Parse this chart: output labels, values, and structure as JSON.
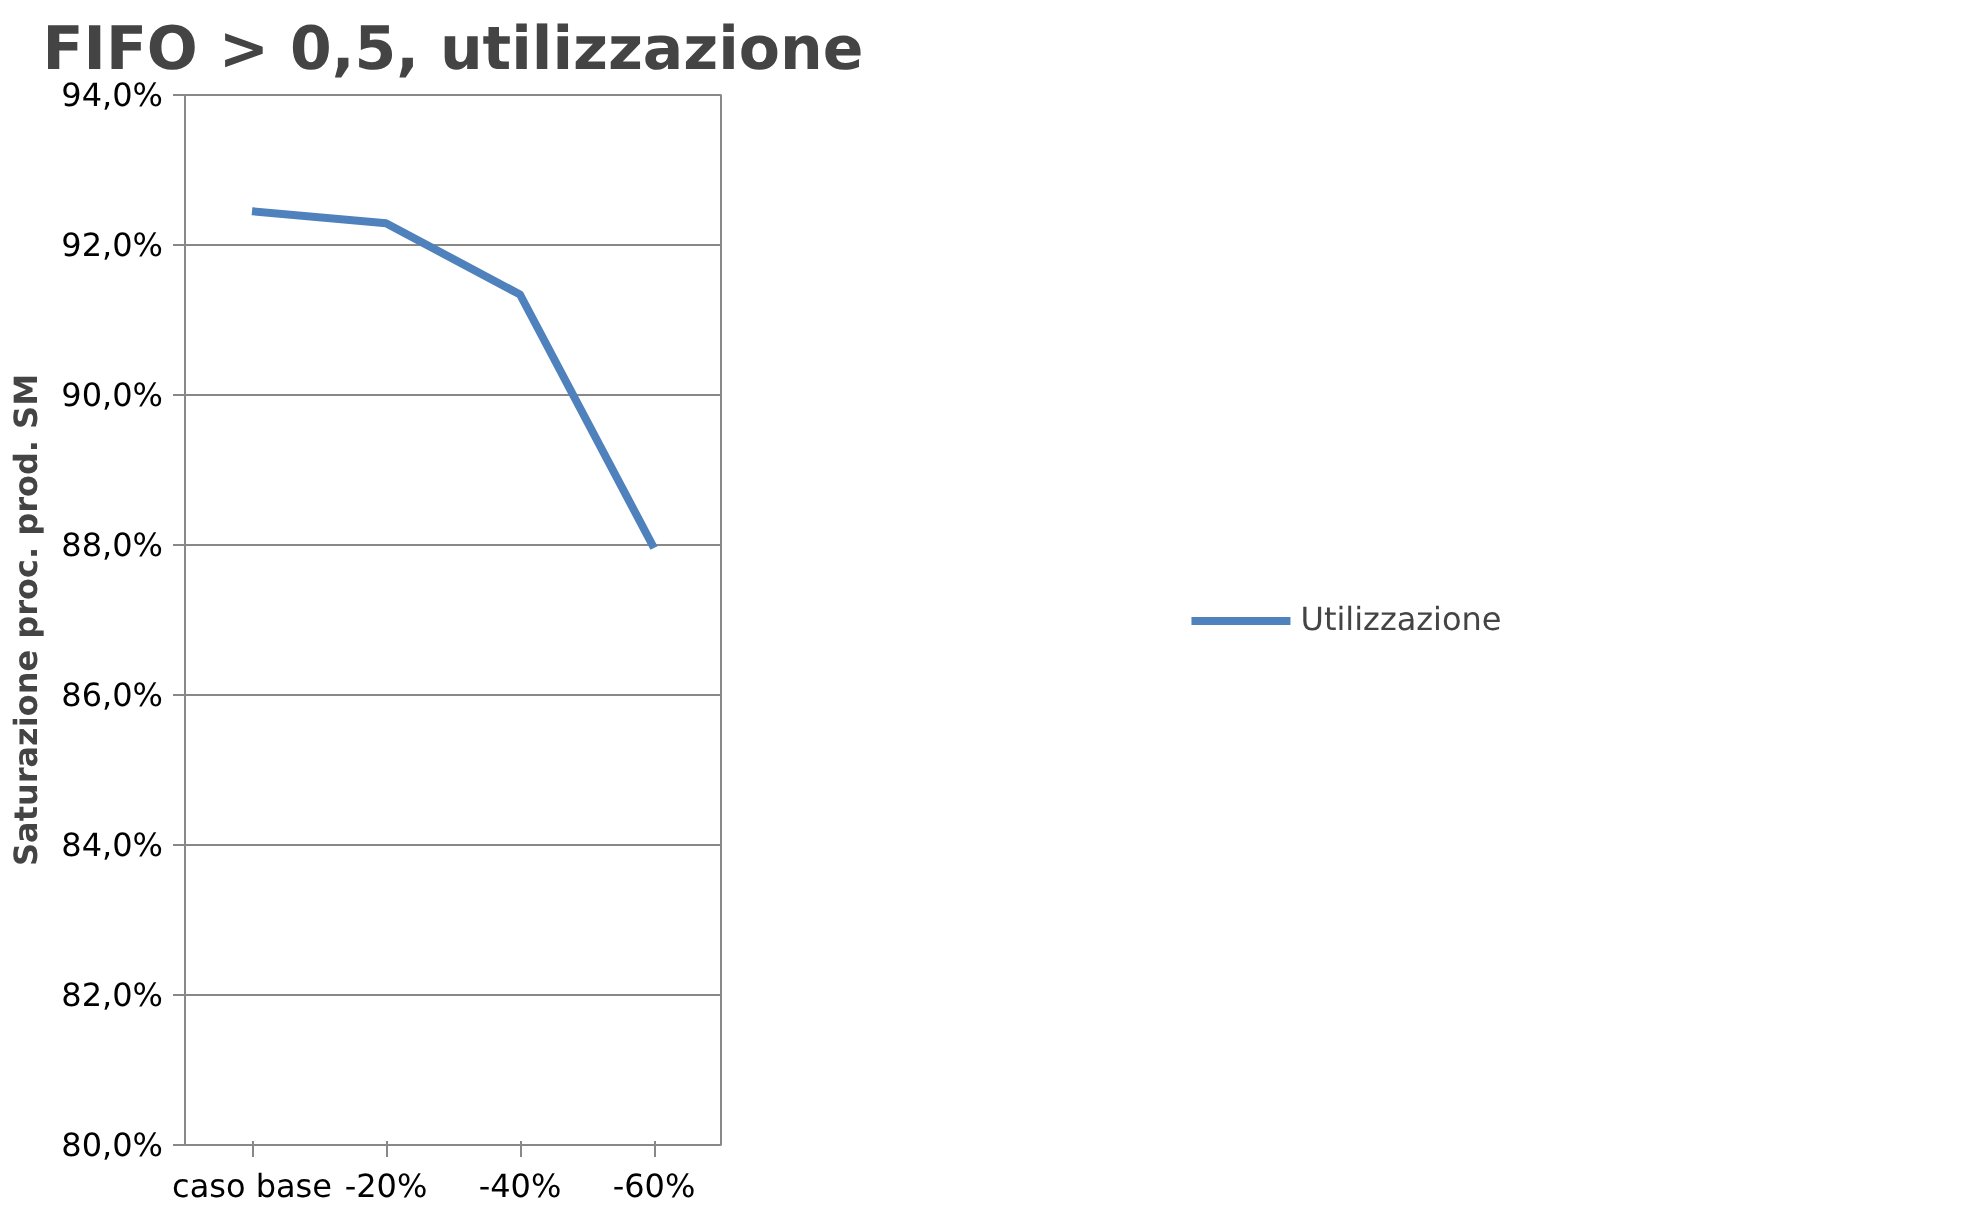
{
  "chart_data": {
    "type": "line",
    "title": "FIFO > 0,5, utilizzazione",
    "ylabel": "Saturazione proc. prod. SM",
    "categories": [
      "caso base",
      "-20%",
      "-40%",
      "-60%"
    ],
    "series": [
      {
        "name": "Utilizzazione",
        "color": "#4f81bd",
        "values": [
          92.45,
          92.29,
          91.34,
          87.96
        ]
      }
    ],
    "ylim": [
      80,
      94
    ],
    "yticks": [
      {
        "value": 80,
        "label": "80,0%"
      },
      {
        "value": 82,
        "label": "82,0%"
      },
      {
        "value": 84,
        "label": "84,0%"
      },
      {
        "value": 86,
        "label": "86,0%"
      },
      {
        "value": 88,
        "label": "88,0%"
      },
      {
        "value": 90,
        "label": "90,0%"
      },
      {
        "value": 92,
        "label": "92,0%"
      },
      {
        "value": 94,
        "label": "94,0%"
      }
    ],
    "grid": "y",
    "legend": "right",
    "marker": "none",
    "line_style": "solid"
  }
}
